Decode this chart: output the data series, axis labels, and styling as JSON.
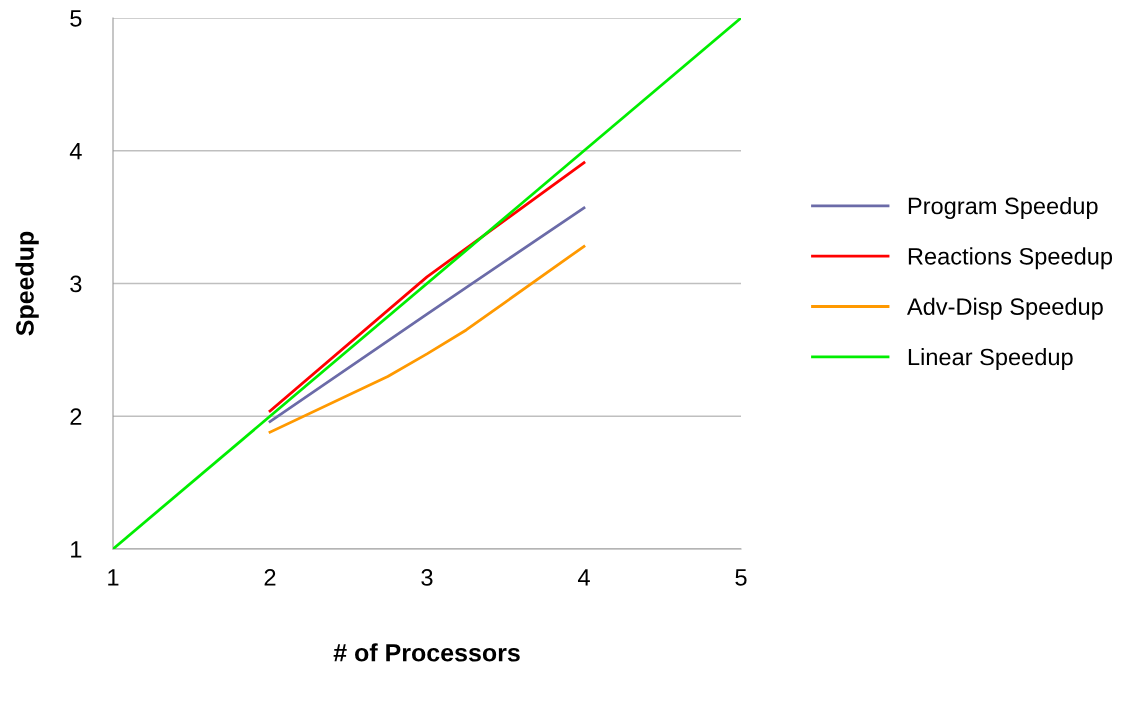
{
  "chart_data": {
    "type": "line",
    "xlabel": "# of Processors",
    "ylabel": "Speedup",
    "xlim": [
      1,
      5
    ],
    "xticks": [
      1,
      2,
      3,
      4,
      5
    ],
    "ylim": [
      1,
      5
    ],
    "yticks": [
      1,
      2,
      3,
      4,
      5
    ],
    "grid": "y",
    "legend": "right",
    "marker": "none",
    "line_style": "solid",
    "series": [
      {
        "name": "Program Speedup",
        "color": "#6b6ba8",
        "x": [
          2,
          3,
          4
        ],
        "values": [
          1.96,
          2.77,
          3.57
        ]
      },
      {
        "name": "Reactions Speedup",
        "color": "#ff0000",
        "x": [
          2,
          3,
          4
        ],
        "values": [
          2.04,
          3.05,
          3.91
        ]
      },
      {
        "name": "Adv-Disp Speedup",
        "color": "#ff9900",
        "x": [
          2,
          2.75,
          3,
          3.25,
          3.5,
          4
        ],
        "values": [
          1.88,
          2.3,
          2.47,
          2.65,
          2.86,
          3.28
        ]
      },
      {
        "name": "Linear Speedup",
        "color": "#00ee00",
        "x": [
          1,
          5
        ],
        "values": [
          1,
          5
        ]
      }
    ]
  }
}
